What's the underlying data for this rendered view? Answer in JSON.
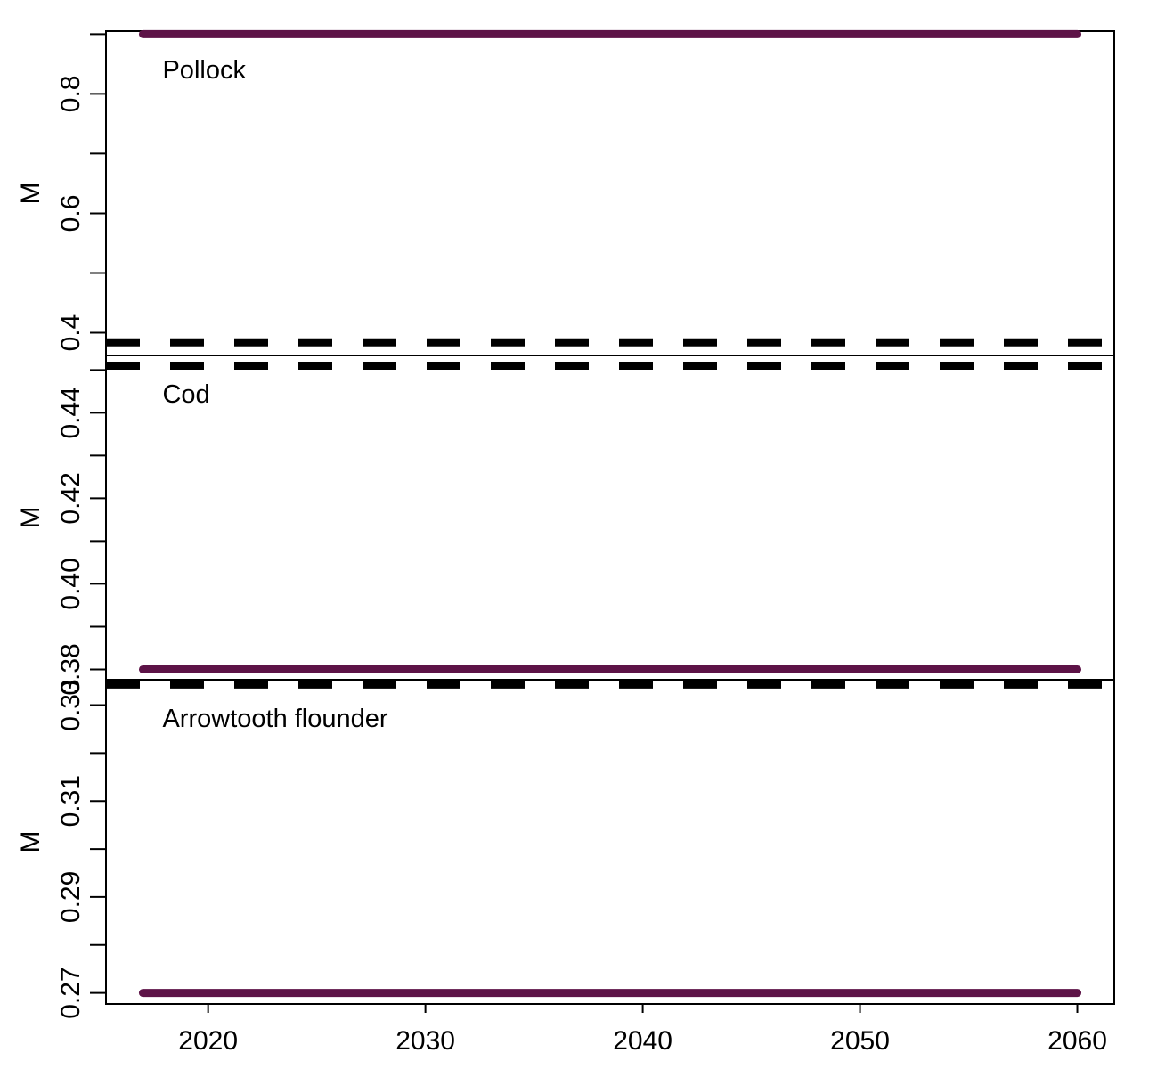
{
  "chart_data": {
    "type": "line",
    "x_axis": {
      "range": [
        2015.3,
        2061.7
      ],
      "ticks": [
        2020,
        2030,
        2040,
        2050,
        2060
      ],
      "label": ""
    },
    "panels": [
      {
        "label": "Pollock",
        "ylabel": "M",
        "ylim": [
          0.362,
          0.905
        ],
        "major_ticks": [
          0.4,
          0.6,
          0.8
        ],
        "tick_labels": [
          "0.4",
          "0.6",
          "0.8"
        ],
        "minor_step": 0.1,
        "series": [
          {
            "style": "solid",
            "color": "#5d1347",
            "x": [
              2017,
              2060
            ],
            "y": [
              0.9,
              0.9
            ]
          },
          {
            "style": "dashed",
            "color": "#000000",
            "x": [
              2015.3,
              2061.7
            ],
            "y": [
              0.384,
              0.384
            ]
          }
        ]
      },
      {
        "label": "Cod",
        "ylabel": "M",
        "ylim": [
          0.3776,
          0.4534
        ],
        "major_ticks": [
          0.38,
          0.4,
          0.42,
          0.44
        ],
        "tick_labels": [
          "0.38",
          "0.40",
          "0.42",
          "0.44"
        ],
        "minor_step": 0.01,
        "series": [
          {
            "style": "solid",
            "color": "#5d1347",
            "x": [
              2017,
              2060
            ],
            "y": [
              0.38,
              0.38
            ]
          },
          {
            "style": "dashed",
            "color": "#000000",
            "x": [
              2015.3,
              2061.7
            ],
            "y": [
              0.451,
              0.451
            ]
          }
        ]
      },
      {
        "label": "Arrowtooth flounder",
        "ylabel": "M",
        "ylim": [
          0.2677,
          0.3353
        ],
        "major_ticks": [
          0.27,
          0.29,
          0.31,
          0.33
        ],
        "tick_labels": [
          "0.27",
          "0.29",
          "0.31",
          "0.33"
        ],
        "minor_step": 0.01,
        "series": [
          {
            "style": "solid",
            "color": "#5d1347",
            "x": [
              2017,
              2060
            ],
            "y": [
              0.27,
              0.27
            ]
          },
          {
            "style": "dashed",
            "color": "#000000",
            "x": [
              2015.3,
              2061.7
            ],
            "y": [
              0.3343,
              0.3343
            ]
          }
        ]
      }
    ]
  }
}
